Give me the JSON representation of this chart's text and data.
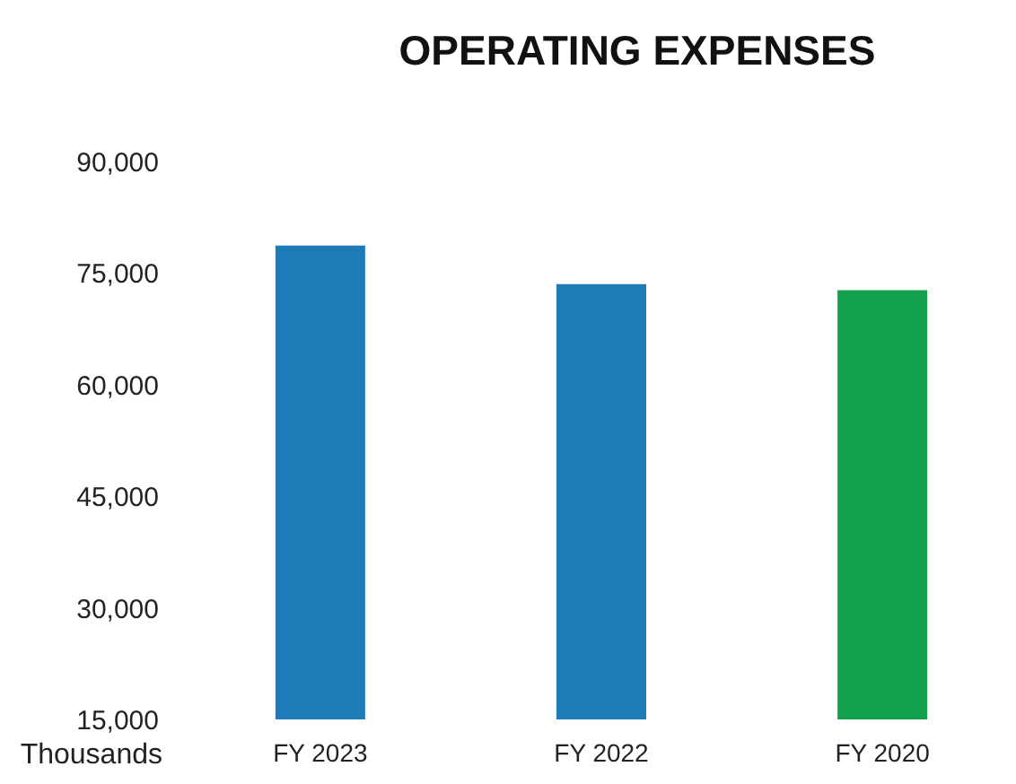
{
  "chart_data": {
    "type": "bar",
    "title": "OPERATING EXPENSES",
    "ylabel": "Thousands",
    "categories": [
      "FY 2023",
      "FY 2022",
      "FY 2020"
    ],
    "values": [
      78700,
      73500,
      72700
    ],
    "colors": [
      "#1f7ab8",
      "#1f7ab8",
      "#12a14a"
    ],
    "ylim": [
      15000,
      90000
    ],
    "yticks": [
      {
        "value": 15000,
        "label": "15,000"
      },
      {
        "value": 30000,
        "label": "30,000"
      },
      {
        "value": 45000,
        "label": "45,000"
      },
      {
        "value": 60000,
        "label": "60,000"
      },
      {
        "value": 75000,
        "label": "75,000"
      },
      {
        "value": 90000,
        "label": "90,000"
      }
    ],
    "grid": false
  }
}
